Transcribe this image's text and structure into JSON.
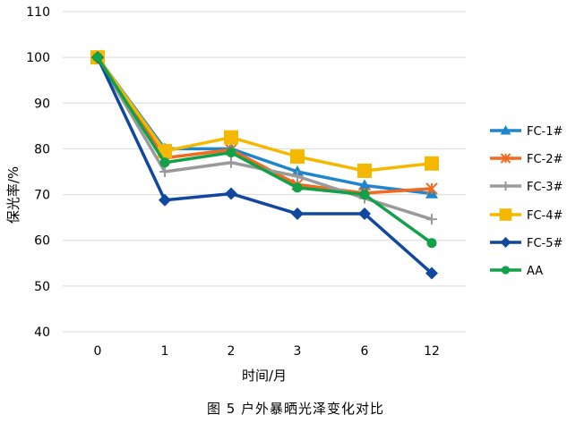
{
  "chart_data": {
    "type": "line",
    "xlabel": "时间/月",
    "ylabel": "保光率/%",
    "categories": [
      "0",
      "1",
      "2",
      "3",
      "6",
      "12"
    ],
    "ylim": [
      40,
      110
    ],
    "yticks": [
      40,
      50,
      60,
      70,
      80,
      90,
      100,
      110
    ],
    "grid": true,
    "legend_position": "right",
    "series": [
      {
        "name": "FC-1#",
        "color": "#1F86CC",
        "marker": "triangle",
        "values": [
          100,
          80.0,
          80.0,
          75.0,
          72.0,
          70.2
        ]
      },
      {
        "name": "FC-2#",
        "color": "#F26A21",
        "marker": "asterisk",
        "values": [
          100,
          78.0,
          79.8,
          72.2,
          70.3,
          71.3
        ]
      },
      {
        "name": "FC-3#",
        "color": "#9A9A9A",
        "marker": "plus",
        "values": [
          100,
          75.0,
          77.0,
          74.0,
          69.2,
          64.6
        ]
      },
      {
        "name": "FC-4#",
        "color": "#F5B800",
        "marker": "square",
        "values": [
          100,
          79.5,
          82.5,
          78.3,
          75.2,
          76.8
        ]
      },
      {
        "name": "FC-5#",
        "color": "#1048A0",
        "marker": "diamond",
        "values": [
          100,
          68.8,
          70.2,
          65.8,
          65.8,
          52.8
        ]
      },
      {
        "name": "AA",
        "color": "#12A048",
        "marker": "circle",
        "values": [
          100,
          77.0,
          79.2,
          71.5,
          70.0,
          59.4
        ]
      }
    ]
  },
  "caption": "图 5   户外暴晒光泽变化对比"
}
